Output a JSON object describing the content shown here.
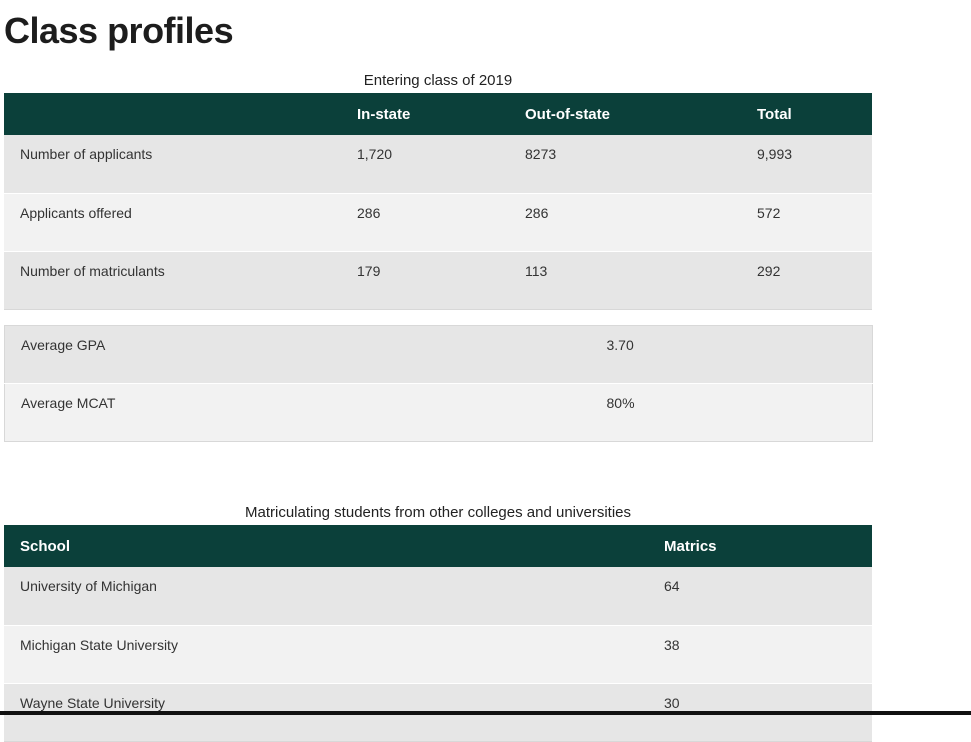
{
  "page": {
    "title": "Class profiles"
  },
  "entering_class": {
    "caption": "Entering class of 2019",
    "headers": [
      "",
      "In-state",
      "Out-of-state",
      "Total"
    ],
    "rows": [
      {
        "label": "Number of applicants",
        "in_state": "1,720",
        "out_of_state": "8273",
        "total": "9,993"
      },
      {
        "label": "Applicants offered",
        "in_state": "286",
        "out_of_state": "286",
        "total": "572"
      },
      {
        "label": "Number of matriculants",
        "in_state": "179",
        "out_of_state": "113",
        "total": "292"
      }
    ]
  },
  "averages": {
    "rows": [
      {
        "label": "Average GPA",
        "value": "3.70"
      },
      {
        "label": "Average MCAT",
        "value": "80%"
      }
    ]
  },
  "matriculating": {
    "caption": "Matriculating students from other colleges and universities",
    "headers": [
      "School",
      "Matrics"
    ],
    "rows": [
      {
        "school": "University of Michigan",
        "matrics": "64"
      },
      {
        "school": "Michigan State University",
        "matrics": "38"
      },
      {
        "school": "Wayne State University",
        "matrics": "30"
      }
    ]
  },
  "colors": {
    "header_bg": "#0b403a",
    "row_odd": "#e6e6e6",
    "row_even": "#f2f2f2"
  }
}
